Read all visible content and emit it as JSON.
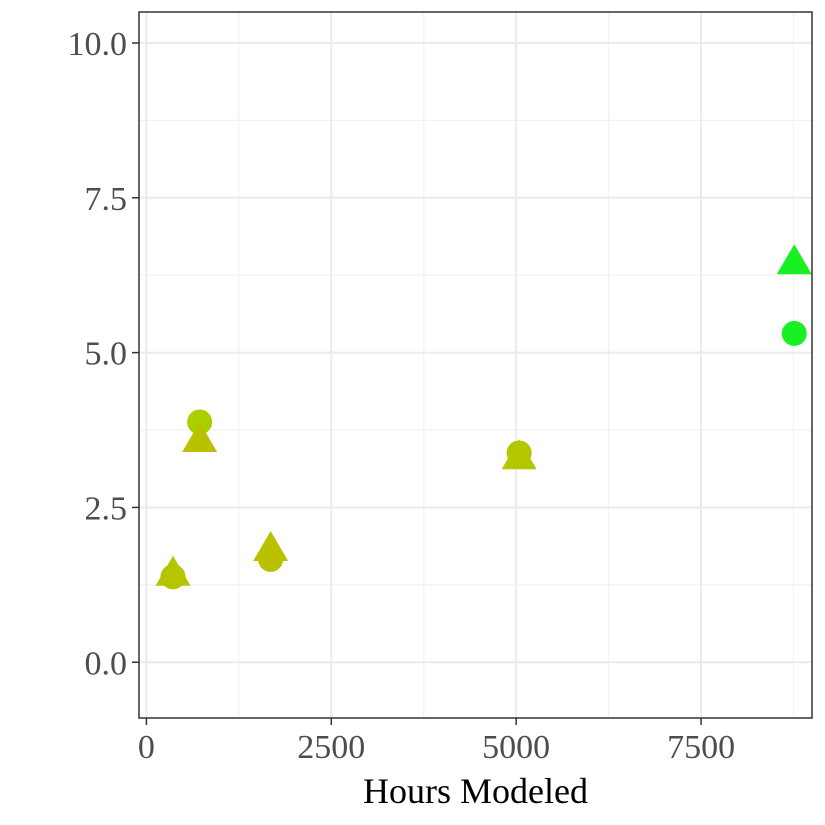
{
  "chart_data": {
    "type": "scatter",
    "title": "",
    "xlabel": "Hours Modeled",
    "ylabel": "",
    "xlim": [
      -100,
      9000
    ],
    "ylim": [
      -0.9,
      10.5
    ],
    "x_ticks": [
      0,
      2500,
      5000,
      7500
    ],
    "x_tick_labels": [
      "0",
      "2500",
      "5000",
      "7500"
    ],
    "y_ticks": [
      0.0,
      2.5,
      5.0,
      7.5,
      10.0
    ],
    "y_tick_labels": [
      "0.0",
      "2.5",
      "5.0",
      "7.5",
      "10.0"
    ],
    "grid": true,
    "legend": "none",
    "series": [
      {
        "shape": "circle",
        "points": [
          {
            "x": 360,
            "y": 1.38,
            "color": "#b9c100"
          },
          {
            "x": 720,
            "y": 3.88,
            "color": "#a8d000"
          },
          {
            "x": 1680,
            "y": 1.66,
            "color": "#b9c100"
          },
          {
            "x": 5040,
            "y": 3.38,
            "color": "#b4c600"
          },
          {
            "x": 8760,
            "y": 5.31,
            "color": "#19f023"
          }
        ]
      },
      {
        "shape": "triangle",
        "points": [
          {
            "x": 360,
            "y": 1.42,
            "color": "#b4c600"
          },
          {
            "x": 720,
            "y": 3.58,
            "color": "#b9c100"
          },
          {
            "x": 1680,
            "y": 1.82,
            "color": "#b9c100"
          },
          {
            "x": 5040,
            "y": 3.3,
            "color": "#b4c600"
          },
          {
            "x": 8760,
            "y": 6.45,
            "color": "#19f023"
          }
        ]
      }
    ]
  }
}
